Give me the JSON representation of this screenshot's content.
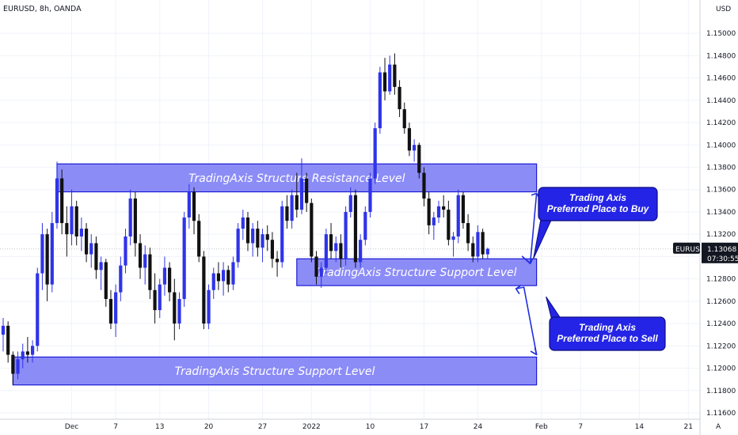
{
  "header": {
    "symbol_info": "EURUSD, 8h, OANDA",
    "currency": "USD"
  },
  "colors": {
    "bull": "#2f34e8",
    "bear": "#111111",
    "zone_fill": "#8c8cf7",
    "zone_border": "#1a1ad6",
    "callout_fill": "#2424e6",
    "arrow": "#1f2ee0",
    "price_badge": "#131722"
  },
  "price_badges": {
    "symbol_tag": "EURUSD",
    "last_price": "1.13068",
    "countdown": "07:30:55"
  },
  "chart_data": {
    "type": "candlestick",
    "title": "",
    "xlabel": "",
    "ylabel": "",
    "ylim": [
      1.116,
      1.151
    ],
    "y_ticks": [
      "1.15000",
      "1.14800",
      "1.14600",
      "1.14400",
      "1.14200",
      "1.14000",
      "1.13800",
      "1.13600",
      "1.13400",
      "1.13200",
      "1.13000",
      "1.12800",
      "1.12600",
      "1.12400",
      "1.12200",
      "1.12000",
      "1.11800",
      "1.11600"
    ],
    "x_ticks": [
      {
        "label": "Dec",
        "index": 14
      },
      {
        "label": "7",
        "index": 23
      },
      {
        "label": "13",
        "index": 32
      },
      {
        "label": "20",
        "index": 42
      },
      {
        "label": "27",
        "index": 53
      },
      {
        "label": "2022",
        "index": 63
      },
      {
        "label": "10",
        "index": 75
      },
      {
        "label": "17",
        "index": 86
      },
      {
        "label": "24",
        "index": 97
      },
      {
        "label": "Feb",
        "index": 110
      },
      {
        "label": "7",
        "index": 118
      },
      {
        "label": "14",
        "index": 130
      },
      {
        "label": "21",
        "index": 140
      }
    ],
    "last_price": 1.13068,
    "candles": [
      [
        1.123,
        1.1245,
        1.1215,
        1.1238
      ],
      [
        1.1238,
        1.1242,
        1.1205,
        1.1212
      ],
      [
        1.1212,
        1.1215,
        1.1185,
        1.1195
      ],
      [
        1.1195,
        1.1215,
        1.119,
        1.1208
      ],
      [
        1.1208,
        1.1222,
        1.12,
        1.1215
      ],
      [
        1.1215,
        1.1228,
        1.1205,
        1.1212
      ],
      [
        1.1212,
        1.1225,
        1.1205,
        1.122
      ],
      [
        1.122,
        1.129,
        1.1215,
        1.1285
      ],
      [
        1.1285,
        1.133,
        1.127,
        1.132
      ],
      [
        1.132,
        1.1325,
        1.126,
        1.1275
      ],
      [
        1.1275,
        1.134,
        1.1268,
        1.133
      ],
      [
        1.133,
        1.1385,
        1.1325,
        1.137
      ],
      [
        1.137,
        1.1378,
        1.132,
        1.133
      ],
      [
        1.133,
        1.1345,
        1.13,
        1.132
      ],
      [
        1.132,
        1.136,
        1.131,
        1.1345
      ],
      [
        1.1345,
        1.135,
        1.131,
        1.1318
      ],
      [
        1.1318,
        1.1335,
        1.1305,
        1.1325
      ],
      [
        1.1325,
        1.133,
        1.1295,
        1.1302
      ],
      [
        1.1302,
        1.132,
        1.129,
        1.1312
      ],
      [
        1.1312,
        1.1318,
        1.128,
        1.1288
      ],
      [
        1.1288,
        1.13,
        1.127,
        1.1295
      ],
      [
        1.1295,
        1.1298,
        1.1255,
        1.1262
      ],
      [
        1.1262,
        1.127,
        1.1235,
        1.124
      ],
      [
        1.124,
        1.1275,
        1.1228,
        1.1268
      ],
      [
        1.1268,
        1.13,
        1.126,
        1.1292
      ],
      [
        1.1292,
        1.1325,
        1.1285,
        1.1318
      ],
      [
        1.1318,
        1.136,
        1.131,
        1.1352
      ],
      [
        1.1352,
        1.1358,
        1.13,
        1.1312
      ],
      [
        1.1312,
        1.132,
        1.128,
        1.129
      ],
      [
        1.129,
        1.131,
        1.1275,
        1.1302
      ],
      [
        1.1302,
        1.1308,
        1.1262,
        1.127
      ],
      [
        1.127,
        1.1285,
        1.124,
        1.1252
      ],
      [
        1.1252,
        1.128,
        1.1245,
        1.1275
      ],
      [
        1.1275,
        1.13,
        1.1265,
        1.129
      ],
      [
        1.129,
        1.1295,
        1.126,
        1.1268
      ],
      [
        1.1268,
        1.128,
        1.1225,
        1.124
      ],
      [
        1.124,
        1.1268,
        1.1235,
        1.1262
      ],
      [
        1.1262,
        1.134,
        1.1255,
        1.1335
      ],
      [
        1.1335,
        1.1365,
        1.1325,
        1.1358
      ],
      [
        1.1358,
        1.1362,
        1.132,
        1.1332
      ],
      [
        1.1332,
        1.1338,
        1.1295,
        1.13
      ],
      [
        1.13,
        1.1305,
        1.1235,
        1.124
      ],
      [
        1.124,
        1.1275,
        1.1235,
        1.127
      ],
      [
        1.127,
        1.129,
        1.1262,
        1.1285
      ],
      [
        1.1285,
        1.1295,
        1.127,
        1.1278
      ],
      [
        1.1278,
        1.1295,
        1.1265,
        1.1288
      ],
      [
        1.1288,
        1.1292,
        1.1268,
        1.1275
      ],
      [
        1.1275,
        1.13,
        1.127,
        1.1295
      ],
      [
        1.1295,
        1.133,
        1.129,
        1.1325
      ],
      [
        1.1325,
        1.1342,
        1.1315,
        1.1335
      ],
      [
        1.1335,
        1.134,
        1.1305,
        1.1312
      ],
      [
        1.1312,
        1.133,
        1.13,
        1.1325
      ],
      [
        1.1325,
        1.1332,
        1.13,
        1.1308
      ],
      [
        1.1308,
        1.1325,
        1.1295,
        1.132
      ],
      [
        1.132,
        1.1328,
        1.1305,
        1.1315
      ],
      [
        1.1315,
        1.1322,
        1.129,
        1.1298
      ],
      [
        1.1298,
        1.1305,
        1.1282,
        1.1295
      ],
      [
        1.1295,
        1.135,
        1.129,
        1.1345
      ],
      [
        1.1345,
        1.1355,
        1.1325,
        1.1332
      ],
      [
        1.1332,
        1.136,
        1.1325,
        1.1355
      ],
      [
        1.1355,
        1.1375,
        1.1335,
        1.1342
      ],
      [
        1.1342,
        1.1388,
        1.1338,
        1.137
      ],
      [
        1.137,
        1.1375,
        1.134,
        1.1348
      ],
      [
        1.1348,
        1.1352,
        1.1295,
        1.13
      ],
      [
        1.13,
        1.1305,
        1.1275,
        1.1282
      ],
      [
        1.1282,
        1.1295,
        1.1272,
        1.129
      ],
      [
        1.129,
        1.1325,
        1.1285,
        1.132
      ],
      [
        1.132,
        1.133,
        1.1298,
        1.1305
      ],
      [
        1.1305,
        1.1318,
        1.1295,
        1.1312
      ],
      [
        1.1312,
        1.132,
        1.129,
        1.1298
      ],
      [
        1.1298,
        1.1345,
        1.1292,
        1.134
      ],
      [
        1.134,
        1.1362,
        1.1335,
        1.1355
      ],
      [
        1.1355,
        1.136,
        1.129,
        1.1295
      ],
      [
        1.1295,
        1.132,
        1.129,
        1.1315
      ],
      [
        1.1315,
        1.1345,
        1.131,
        1.134
      ],
      [
        1.134,
        1.1375,
        1.1335,
        1.137
      ],
      [
        1.137,
        1.142,
        1.1365,
        1.1415
      ],
      [
        1.1415,
        1.147,
        1.141,
        1.1465
      ],
      [
        1.1465,
        1.1478,
        1.144,
        1.1448
      ],
      [
        1.1448,
        1.148,
        1.1445,
        1.1472
      ],
      [
        1.1472,
        1.1482,
        1.1445,
        1.1452
      ],
      [
        1.1452,
        1.1458,
        1.1425,
        1.1432
      ],
      [
        1.1432,
        1.1438,
        1.141,
        1.1415
      ],
      [
        1.1415,
        1.142,
        1.139,
        1.1395
      ],
      [
        1.1395,
        1.1405,
        1.1385,
        1.14
      ],
      [
        1.14,
        1.1402,
        1.137,
        1.1375
      ],
      [
        1.1375,
        1.138,
        1.1345,
        1.1352
      ],
      [
        1.1352,
        1.1358,
        1.132,
        1.1328
      ],
      [
        1.1328,
        1.134,
        1.1315,
        1.1335
      ],
      [
        1.1335,
        1.135,
        1.133,
        1.1345
      ],
      [
        1.1345,
        1.1355,
        1.1335,
        1.1342
      ],
      [
        1.1342,
        1.135,
        1.131,
        1.1315
      ],
      [
        1.1315,
        1.1322,
        1.13,
        1.1318
      ],
      [
        1.1318,
        1.136,
        1.1312,
        1.1355
      ],
      [
        1.1355,
        1.1358,
        1.1325,
        1.133
      ],
      [
        1.133,
        1.1338,
        1.1305,
        1.1312
      ],
      [
        1.1312,
        1.1318,
        1.1295,
        1.13
      ],
      [
        1.13,
        1.1328,
        1.1295,
        1.1322
      ],
      [
        1.1322,
        1.1325,
        1.1298,
        1.1302
      ],
      [
        1.1302,
        1.1308,
        1.1298,
        1.1307
      ]
    ]
  },
  "zones": [
    {
      "label": "TradingAxis Structure Resistance Level",
      "price_top": 1.1383,
      "price_bottom": 1.1358,
      "start_index": 11,
      "end_index": 109
    },
    {
      "label": "TradingAxis Structure Support Level",
      "price_top": 1.1298,
      "price_bottom": 1.1274,
      "start_index": 60,
      "end_index": 109
    },
    {
      "label": "TradingAxis Structure Support Level",
      "price_top": 1.121,
      "price_bottom": 1.1185,
      "start_index": 2,
      "end_index": 109
    }
  ],
  "callouts": [
    {
      "line1": "Trading Axis",
      "line2": "Preferred Place to Buy"
    },
    {
      "line1": "Trading Axis",
      "line2": "Preferred Place to Sell"
    }
  ],
  "footer": {
    "auto_label": "A"
  }
}
